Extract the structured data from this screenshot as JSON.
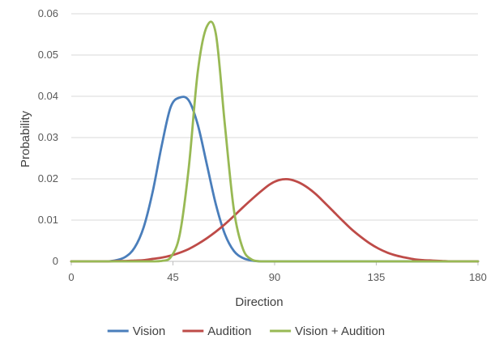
{
  "chart_data": {
    "type": "line",
    "title": "",
    "xlabel": "Direction",
    "ylabel": "Probability",
    "xlim": [
      0,
      180
    ],
    "ylim": [
      0,
      0.06
    ],
    "x_ticks": [
      0,
      45,
      90,
      135,
      180
    ],
    "y_ticks": [
      0,
      0.01,
      0.02,
      0.03,
      0.04,
      0.05,
      0.06
    ],
    "x_tick_labels": [
      "0",
      "45",
      "90",
      "135",
      "180"
    ],
    "y_tick_labels": [
      "0",
      "0.01",
      "0.02",
      "0.03",
      "0.04",
      "0.05",
      "0.06"
    ],
    "grid": "horizontal",
    "legend_position": "bottom",
    "x": [
      0,
      4,
      8,
      12,
      16,
      20,
      24,
      28,
      32,
      36,
      40,
      44,
      48,
      52,
      56,
      60,
      64,
      68,
      72,
      76,
      80,
      84,
      88,
      92,
      96,
      100,
      104,
      108,
      112,
      116,
      120,
      124,
      128,
      132,
      136,
      140,
      144,
      148,
      152,
      156,
      160,
      164,
      168,
      172,
      176,
      180
    ],
    "series": [
      {
        "name": "Vision",
        "color": "#4a7ebb",
        "values": [
          0,
          0,
          0,
          0,
          0,
          0.0003,
          0.0011,
          0.0033,
          0.0082,
          0.0168,
          0.028,
          0.0374,
          0.0397,
          0.039,
          0.0331,
          0.0235,
          0.0138,
          0.0066,
          0.0025,
          0.0008,
          0.0002,
          0,
          0,
          0,
          0,
          0,
          0,
          0,
          0,
          0,
          0,
          0,
          0,
          0,
          0,
          0,
          0,
          0,
          0,
          0,
          0,
          0,
          0,
          0,
          0,
          0
        ]
      },
      {
        "name": "Audition",
        "color": "#be4b48",
        "values": [
          0,
          0,
          0,
          0,
          0,
          0.0001,
          0.0001,
          0.0002,
          0.0003,
          0.0006,
          0.0009,
          0.0014,
          0.0021,
          0.003,
          0.0042,
          0.0056,
          0.0072,
          0.009,
          0.011,
          0.0131,
          0.0151,
          0.017,
          0.0187,
          0.0197,
          0.0199,
          0.0193,
          0.0181,
          0.0164,
          0.0143,
          0.0121,
          0.0099,
          0.0078,
          0.006,
          0.0044,
          0.0031,
          0.0021,
          0.0014,
          0.0009,
          0.0005,
          0.0003,
          0.0002,
          0.0001,
          0,
          0,
          0,
          0
        ]
      },
      {
        "name": "Vision + Audition",
        "color": "#98b954",
        "values": [
          0,
          0,
          0,
          0,
          0,
          0,
          0,
          0,
          0,
          0,
          0.0001,
          0.001,
          0.0065,
          0.0227,
          0.046,
          0.0569,
          0.0551,
          0.033,
          0.0124,
          0.003,
          0.0004,
          0,
          0,
          0,
          0,
          0,
          0,
          0,
          0,
          0,
          0,
          0,
          0,
          0,
          0,
          0,
          0,
          0,
          0,
          0,
          0,
          0,
          0,
          0,
          0,
          0
        ]
      }
    ]
  }
}
